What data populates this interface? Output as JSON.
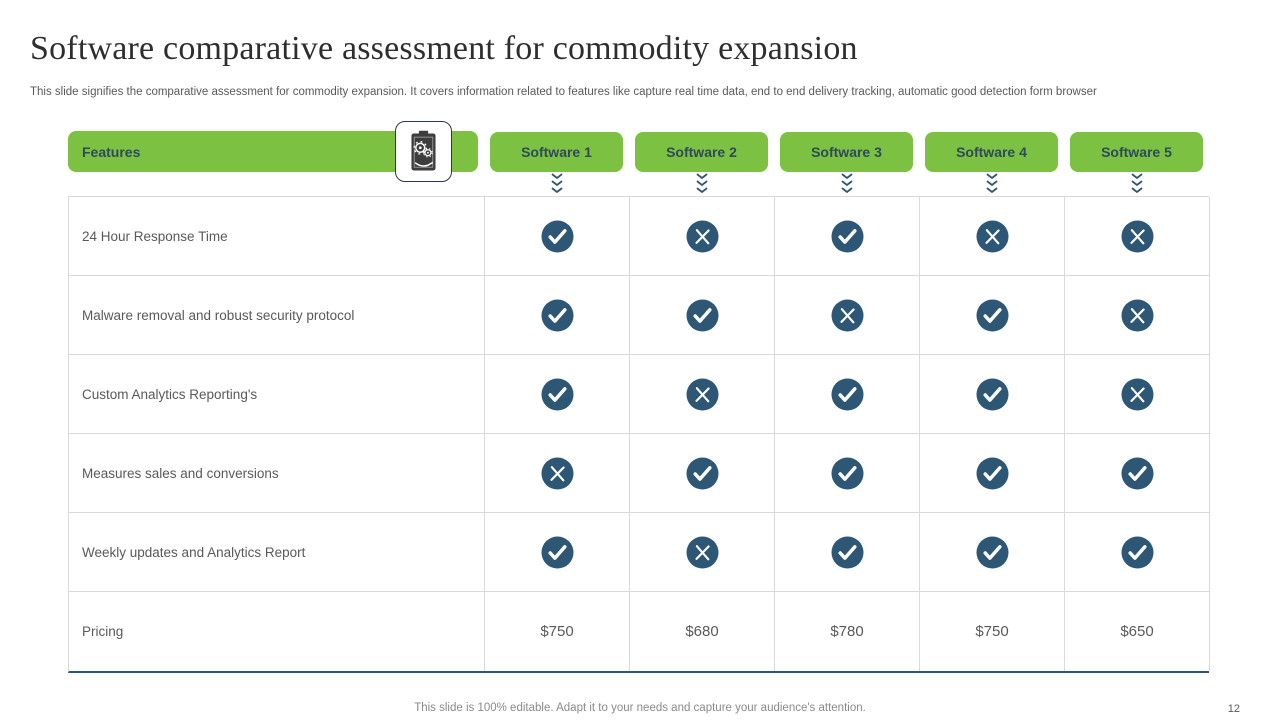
{
  "title": "Software comparative assessment for commodity expansion",
  "subtitle": "This slide signifies the comparative assessment for commodity expansion. It covers information related to features like capture real time data, end to  end delivery tracking, automatic good detection form browser",
  "colors": {
    "green": "#7cc142",
    "navy": "#2d5775",
    "header_text": "#2e4a5c",
    "body_text": "#595959",
    "grid_line": "#d9d9d9"
  },
  "table": {
    "features_header": "Features",
    "header_icon": "clipboard-gears-icon",
    "columns": [
      "Software 1",
      "Software 2",
      "Software 3",
      "Software 4",
      "Software 5"
    ],
    "rows": [
      {
        "feature": "24 Hour Response Time",
        "values": [
          "check",
          "cross",
          "check",
          "cross",
          "cross"
        ]
      },
      {
        "feature": "Malware removal and robust security protocol",
        "values": [
          "check",
          "check",
          "cross",
          "check",
          "cross"
        ]
      },
      {
        "feature": "Custom Analytics Reporting's",
        "values": [
          "check",
          "cross",
          "check",
          "check",
          "cross"
        ]
      },
      {
        "feature": "Measures sales and conversions",
        "values": [
          "cross",
          "check",
          "check",
          "check",
          "check"
        ]
      },
      {
        "feature": "Weekly updates and Analytics Report",
        "values": [
          "check",
          "cross",
          "check",
          "check",
          "check"
        ]
      },
      {
        "feature": "Pricing",
        "values": [
          "$750",
          "$680",
          "$780",
          "$750",
          "$650"
        ]
      }
    ]
  },
  "footer": {
    "note": "This slide is 100% editable. Adapt it to your needs and capture your audience's attention.",
    "page_number": "12"
  }
}
